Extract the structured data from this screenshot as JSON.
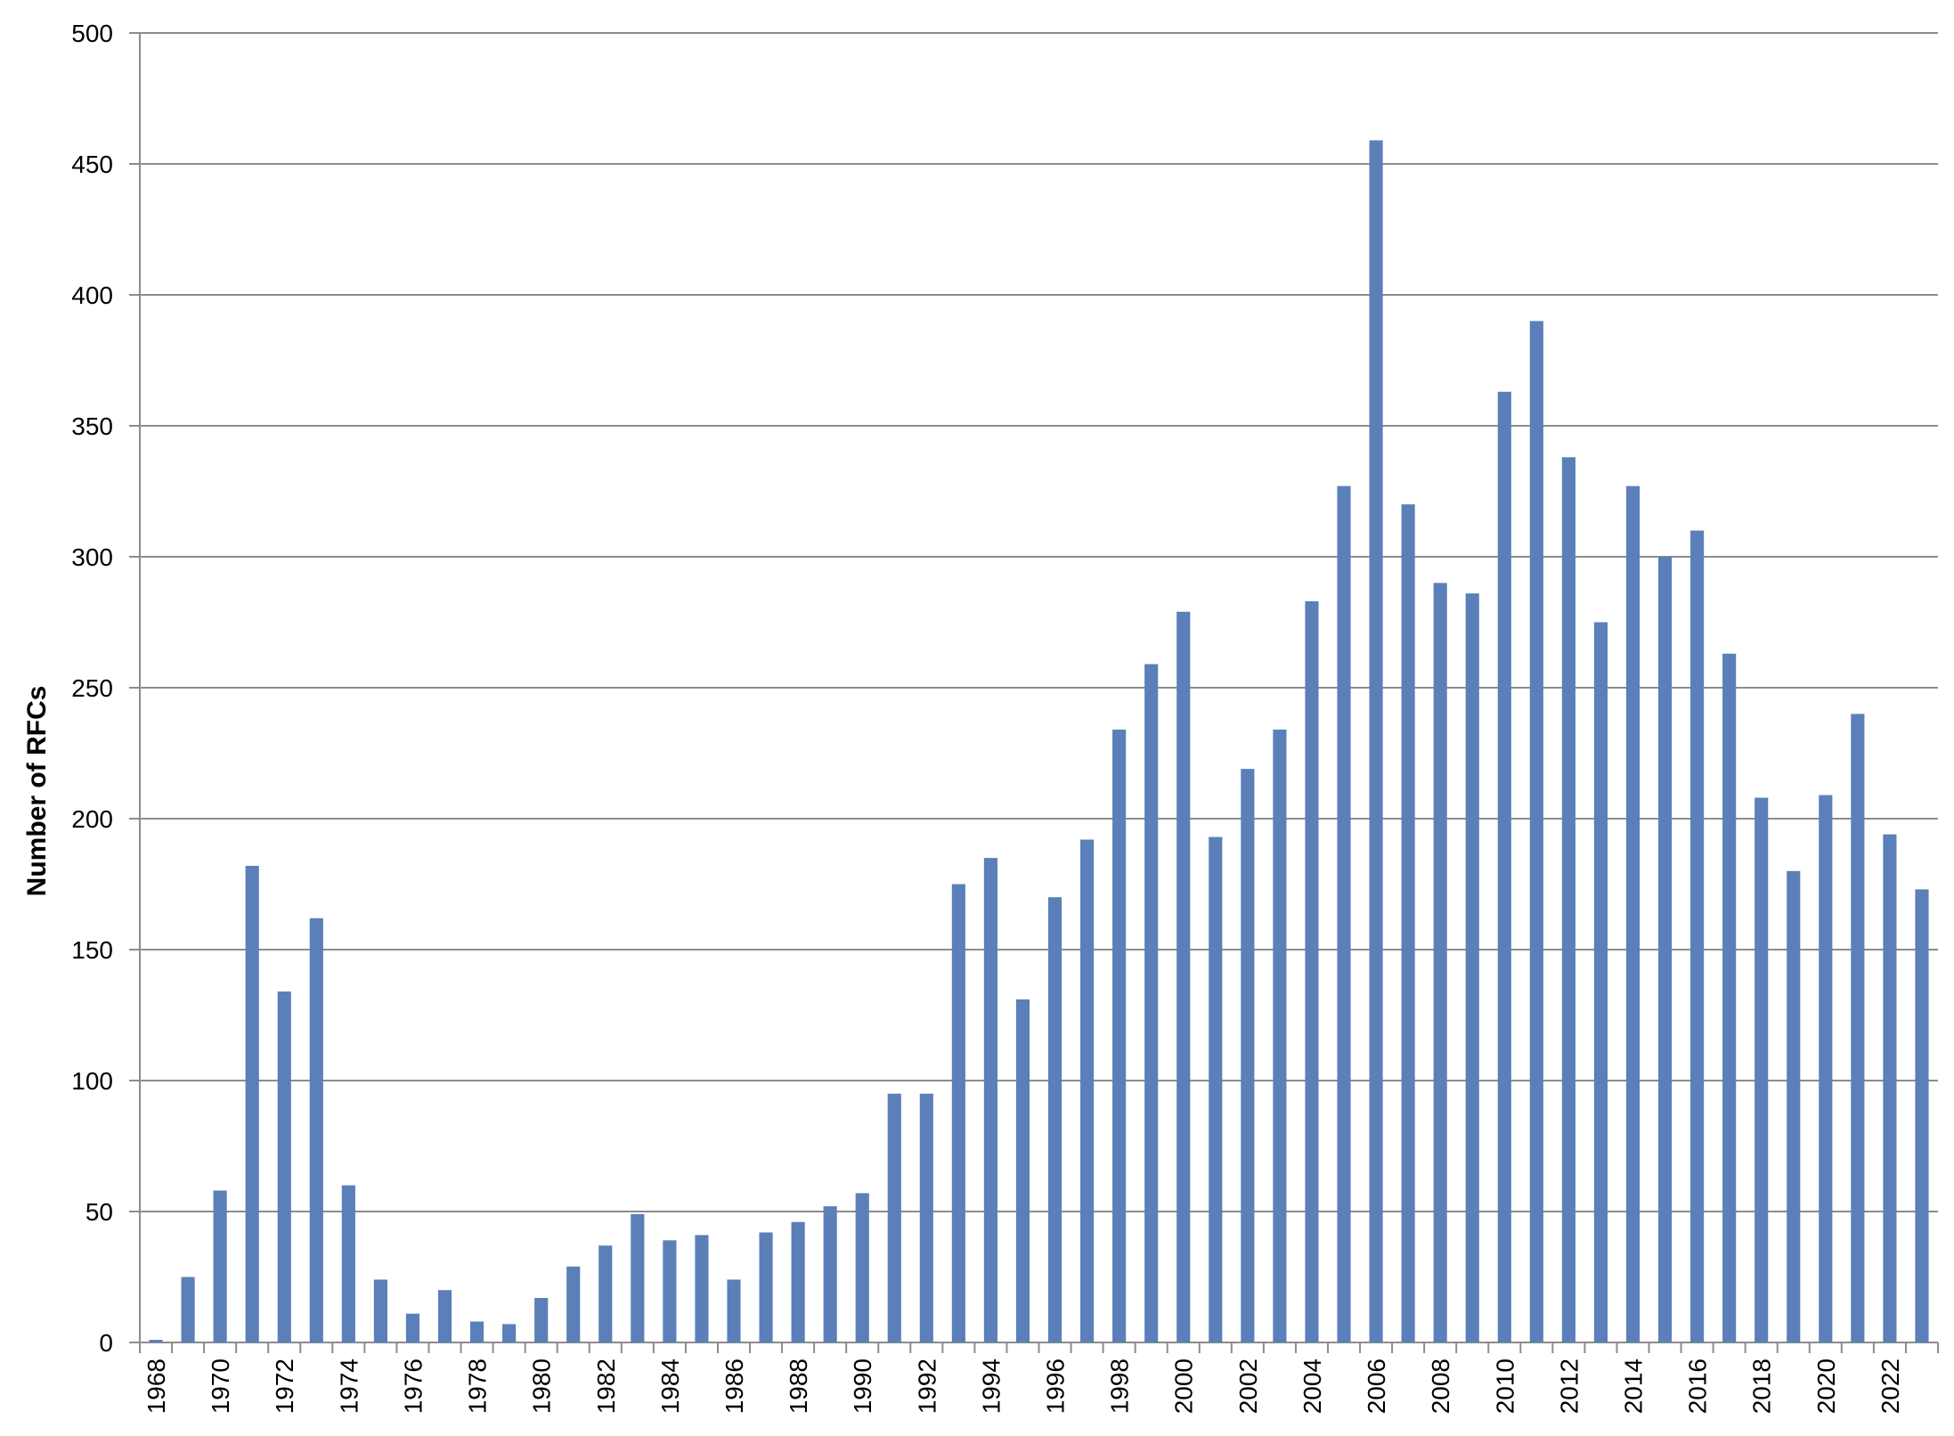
{
  "chart_data": {
    "type": "bar",
    "title": "",
    "xlabel": "",
    "ylabel": "Number of RFCs",
    "ylim": [
      0,
      500
    ],
    "y_ticks": [
      0,
      50,
      100,
      150,
      200,
      250,
      300,
      350,
      400,
      450,
      500
    ],
    "grid": true,
    "legend": "none",
    "bar_color": "#5b7fb8",
    "categories": [
      1968,
      1969,
      1970,
      1971,
      1972,
      1973,
      1974,
      1975,
      1976,
      1977,
      1978,
      1979,
      1980,
      1981,
      1982,
      1983,
      1984,
      1985,
      1986,
      1987,
      1988,
      1989,
      1990,
      1991,
      1992,
      1993,
      1994,
      1995,
      1996,
      1997,
      1998,
      1999,
      2000,
      2001,
      2002,
      2003,
      2004,
      2005,
      2006,
      2007,
      2008,
      2009,
      2010,
      2011,
      2012,
      2013,
      2014,
      2015,
      2016,
      2017,
      2018,
      2019,
      2020,
      2021,
      2022,
      2023
    ],
    "x_tick_labels": [
      "1968",
      "1970",
      "1972",
      "1974",
      "1976",
      "1978",
      "1980",
      "1982",
      "1984",
      "1986",
      "1988",
      "1990",
      "1992",
      "1994",
      "1996",
      "1998",
      "2000",
      "2002",
      "2004",
      "2006",
      "2008",
      "2010",
      "2012",
      "2014",
      "2016",
      "2018",
      "2020",
      "2022"
    ],
    "values": [
      1,
      25,
      58,
      182,
      134,
      162,
      60,
      24,
      11,
      20,
      8,
      7,
      17,
      29,
      37,
      49,
      39,
      41,
      24,
      42,
      46,
      52,
      57,
      95,
      95,
      175,
      185,
      131,
      170,
      192,
      234,
      259,
      279,
      193,
      219,
      234,
      283,
      327,
      459,
      320,
      290,
      286,
      363,
      390,
      338,
      275,
      327,
      300,
      310,
      263,
      208,
      180,
      209,
      240,
      194,
      173
    ]
  }
}
